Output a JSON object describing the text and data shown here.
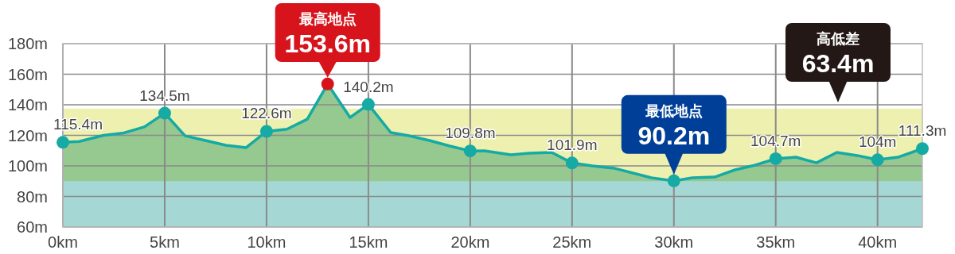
{
  "chart_data": {
    "type": "area",
    "xlim": [
      0,
      42.2
    ],
    "ylim": [
      60,
      180
    ],
    "xticks": [
      {
        "value": 0,
        "label": "0km"
      },
      {
        "value": 5,
        "label": "5km"
      },
      {
        "value": 10,
        "label": "10km"
      },
      {
        "value": 15,
        "label": "15km"
      },
      {
        "value": 20,
        "label": "20km"
      },
      {
        "value": 25,
        "label": "25km"
      },
      {
        "value": 30,
        "label": "30km"
      },
      {
        "value": 35,
        "label": "35km"
      },
      {
        "value": 40,
        "label": "40km"
      }
    ],
    "yticks": [
      {
        "value": 60,
        "label": "60m"
      },
      {
        "value": 80,
        "label": "80m"
      },
      {
        "value": 100,
        "label": "100m"
      },
      {
        "value": 120,
        "label": "120m"
      },
      {
        "value": 140,
        "label": "140m"
      },
      {
        "value": 160,
        "label": "160m"
      },
      {
        "value": 180,
        "label": "180m"
      }
    ],
    "grid": true,
    "bands": [
      {
        "axis": "y",
        "from": 90,
        "to": 137.5,
        "color": "#eef0b0"
      },
      {
        "axis": "y",
        "from": 60,
        "to": 90,
        "color": "#a5d8d4"
      }
    ],
    "series": [
      {
        "color": "#15aaa4",
        "x": [
          0,
          0.8,
          2,
          3,
          4,
          5,
          6,
          7,
          8,
          9,
          10,
          11,
          12,
          13,
          14.1,
          15,
          16.1,
          17,
          18,
          19,
          20,
          20.7,
          22,
          22.9,
          24,
          25,
          26,
          27.1,
          28.9,
          30,
          30.9,
          32,
          33,
          34,
          35,
          36,
          37,
          38,
          39,
          40,
          41,
          42.2
        ],
        "values": [
          115.4,
          116,
          120,
          121.6,
          125.5,
          134.5,
          119.7,
          116.6,
          113.5,
          112,
          122.6,
          124,
          130.6,
          153.6,
          131.7,
          140.2,
          121.8,
          119.7,
          116.6,
          113,
          109.8,
          109.9,
          107.3,
          108.3,
          108.8,
          101.9,
          100,
          98.4,
          92.2,
          90.2,
          92.2,
          92.7,
          97.4,
          100.5,
          104.7,
          105.7,
          102,
          108.8,
          106.8,
          104,
          105.7,
          111.3
        ]
      },
      {
        "type": "scatter",
        "marker": "circle",
        "x": [
          0,
          5,
          10,
          13,
          15,
          20,
          25,
          30,
          35,
          40,
          42.2
        ],
        "values": [
          115.4,
          134.5,
          122.6,
          153.6,
          140.2,
          109.8,
          101.9,
          90.2,
          104.7,
          104,
          111.3
        ],
        "colors": [
          "#15aaa4",
          "#15aaa4",
          "#15aaa4",
          "#d7141c",
          "#15aaa4",
          "#15aaa4",
          "#15aaa4",
          "#15aaa4",
          "#15aaa4",
          "#15aaa4",
          "#15aaa4"
        ],
        "value_labels": [
          "115.4m",
          "134.5m",
          "122.6m",
          null,
          "140.2m",
          "109.8m",
          "101.9m",
          null,
          "104.7m",
          "104m",
          "111.3m"
        ]
      }
    ],
    "annotations": [
      {
        "text": "最高地点 153.6m",
        "x": 13,
        "y": 153.6
      },
      {
        "text": "最低地点 90.2m",
        "x": 30,
        "y": 90.2
      },
      "高低差 63.4m"
    ]
  }
}
